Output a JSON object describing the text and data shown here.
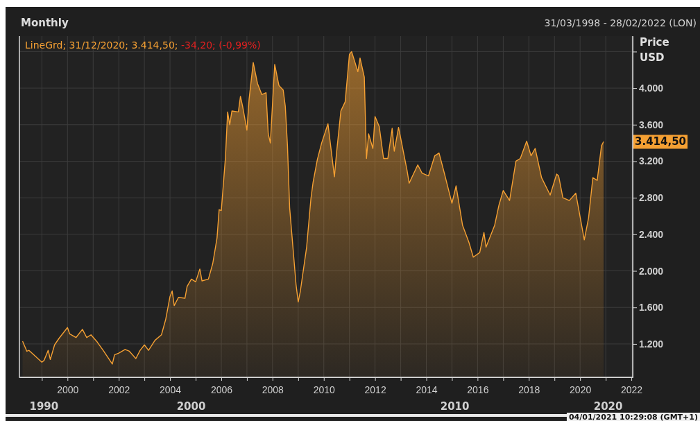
{
  "chart_data": {
    "type": "area",
    "title": "Monthly",
    "ylabel": "Price USD",
    "x": [
      "1998-04",
      "1998-06",
      "1998-07",
      "1999-01",
      "1999-02",
      "1999-04",
      "1999-05",
      "1999-07",
      "1999-09",
      "2000-01",
      "2000-02",
      "2000-05",
      "2000-08",
      "2000-10",
      "2000-12",
      "2001-03",
      "2001-06",
      "2001-10",
      "2001-11",
      "2002-01",
      "2002-04",
      "2002-06",
      "2002-09",
      "2002-11",
      "2003-01",
      "2003-03",
      "2003-06",
      "2003-09",
      "2003-11",
      "2004-01",
      "2004-02",
      "2004-03",
      "2004-05",
      "2004-08",
      "2004-09",
      "2004-11",
      "2005-01",
      "2005-03",
      "2005-04",
      "2005-07",
      "2005-09",
      "2005-11",
      "2005-12",
      "2006-01",
      "2006-03",
      "2006-04",
      "2006-05",
      "2006-06",
      "2006-09",
      "2006-10",
      "2006-11",
      "2007-01",
      "2007-02",
      "2007-04",
      "2007-06",
      "2007-08",
      "2007-10",
      "2007-11",
      "2007-12",
      "2008-02",
      "2008-04",
      "2008-06",
      "2008-07",
      "2008-08",
      "2008-09",
      "2008-12",
      "2009-01",
      "2009-02",
      "2009-05",
      "2009-07",
      "2009-08",
      "2009-10",
      "2009-12",
      "2010-03",
      "2010-06",
      "2010-07",
      "2010-09",
      "2010-11",
      "2011-01",
      "2011-02",
      "2011-05",
      "2011-06",
      "2011-08",
      "2011-09",
      "2011-10",
      "2011-12",
      "2012-01",
      "2012-03",
      "2012-05",
      "2012-07",
      "2012-09",
      "2012-10",
      "2012-12",
      "2013-04",
      "2013-05",
      "2013-09",
      "2013-11",
      "2014-02",
      "2014-05",
      "2014-07",
      "2014-09",
      "2015-01",
      "2015-03",
      "2015-06",
      "2015-09",
      "2015-11",
      "2016-02",
      "2016-04",
      "2016-05",
      "2016-09",
      "2016-11",
      "2017-01",
      "2017-04",
      "2017-07",
      "2017-09",
      "2017-12",
      "2018-02",
      "2018-04",
      "2018-07",
      "2018-11",
      "2019-02",
      "2019-03",
      "2019-05",
      "2019-08",
      "2019-11",
      "2020-03",
      "2020-05",
      "2020-07",
      "2020-09",
      "2020-11",
      "2020-12"
    ],
    "series": [
      {
        "color": "#f5a033",
        "values": [
          1230,
          1120,
          1130,
          1000,
          1020,
          1130,
          1030,
          1190,
          1260,
          1380,
          1310,
          1270,
          1360,
          1270,
          1300,
          1220,
          1120,
          980,
          1080,
          1100,
          1140,
          1120,
          1040,
          1130,
          1190,
          1130,
          1240,
          1300,
          1470,
          1720,
          1780,
          1620,
          1710,
          1700,
          1830,
          1910,
          1880,
          2020,
          1890,
          1910,
          2080,
          2360,
          2670,
          2660,
          3240,
          3740,
          3600,
          3750,
          3740,
          3910,
          3800,
          3540,
          3880,
          4280,
          4050,
          3930,
          3950,
          3500,
          3400,
          4260,
          4030,
          3980,
          3800,
          3370,
          2690,
          1850,
          1660,
          1780,
          2260,
          2790,
          2970,
          3220,
          3400,
          3610,
          3030,
          3290,
          3750,
          3850,
          4370,
          4400,
          4180,
          4330,
          4120,
          3230,
          3500,
          3340,
          3690,
          3580,
          3230,
          3230,
          3560,
          3310,
          3570,
          3100,
          2960,
          3160,
          3070,
          3040,
          3260,
          3290,
          3110,
          2740,
          2930,
          2500,
          2310,
          2150,
          2200,
          2420,
          2260,
          2500,
          2720,
          2880,
          2770,
          3200,
          3230,
          3420,
          3260,
          3340,
          3020,
          2830,
          3060,
          3040,
          2800,
          2770,
          2850,
          2340,
          2580,
          3020,
          2990,
          3370,
          3414.5
        ]
      }
    ],
    "xlim": [
      "1998-02-15",
      "2022-01-20"
    ],
    "ylim": [
      835,
      4570
    ],
    "xticks": [
      {
        "value": "1999-01-01",
        "label": null
      },
      {
        "value": "2000-01-01",
        "label": "2000"
      },
      {
        "value": "2001-01-01",
        "label": null
      },
      {
        "value": "2002-01-01",
        "label": "2002"
      },
      {
        "value": "2003-01-01",
        "label": null
      },
      {
        "value": "2004-01-01",
        "label": "2004"
      },
      {
        "value": "2005-01-01",
        "label": null
      },
      {
        "value": "2006-01-01",
        "label": "2006"
      },
      {
        "value": "2007-01-01",
        "label": null
      },
      {
        "value": "2008-01-01",
        "label": "2008"
      },
      {
        "value": "2009-01-01",
        "label": null
      },
      {
        "value": "2010-01-01",
        "label": "2010"
      },
      {
        "value": "2011-01-01",
        "label": null
      },
      {
        "value": "2012-01-01",
        "label": "2012"
      },
      {
        "value": "2013-01-01",
        "label": null
      },
      {
        "value": "2014-01-01",
        "label": "2014"
      },
      {
        "value": "2015-01-01",
        "label": null
      },
      {
        "value": "2016-01-01",
        "label": "2016"
      },
      {
        "value": "2017-01-01",
        "label": null
      },
      {
        "value": "2018-01-01",
        "label": "2018"
      },
      {
        "value": "2019-01-01",
        "label": null
      },
      {
        "value": "2020-01-01",
        "label": "2020"
      },
      {
        "value": "2021-01-01",
        "label": null
      },
      {
        "value": "2022-01-01",
        "label": "2022"
      }
    ],
    "yticks": [
      {
        "value": 1200,
        "label": "1.200"
      },
      {
        "value": 1600,
        "label": "1.600"
      },
      {
        "value": 2000,
        "label": "2.000"
      },
      {
        "value": 2400,
        "label": "2.400"
      },
      {
        "value": 2800,
        "label": "2.800"
      },
      {
        "value": 3200,
        "label": "3.200"
      },
      {
        "value": 3600,
        "label": "3.600"
      },
      {
        "value": 4000,
        "label": "4.000"
      },
      {
        "value": 4400,
        "label": null
      }
    ],
    "grid": true,
    "annotations": [
      "31/03/1998 - 28/02/2022 (LON)",
      "LineGrd; 31/12/2020; 3.414,50;",
      "-34,20; (-0,99%)",
      {
        "text": "3.414,50",
        "x": "2020-12",
        "y": 3414.5
      },
      "04/01/2021 10:29:08 (GMT+1)",
      "1990",
      "2000",
      "2010",
      "2020"
    ]
  }
}
